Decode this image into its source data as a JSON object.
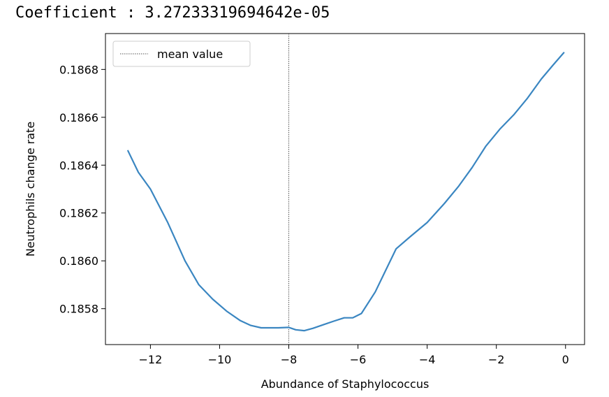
{
  "header": {
    "coefficient_text": "Coefficient : 3.27233319694642e-05"
  },
  "chart_data": {
    "type": "line",
    "xlabel": "Abundance of Staphylococcus",
    "ylabel": "Neutrophils change rate",
    "xlim": [
      -13.3,
      0.55
    ],
    "ylim": [
      0.18565,
      0.18695
    ],
    "xticks": [
      -12,
      -10,
      -8,
      -6,
      -4,
      -2,
      0
    ],
    "xtick_labels": [
      "−12",
      "−10",
      "−8",
      "−6",
      "−4",
      "−2",
      "0"
    ],
    "yticks": [
      0.1858,
      0.186,
      0.1862,
      0.1864,
      0.1866,
      0.1868
    ],
    "ytick_labels": [
      "0.1858",
      "0.1860",
      "0.1862",
      "0.1864",
      "0.1866",
      "0.1868"
    ],
    "grid": false,
    "legend": {
      "placement": "top-left",
      "entries": [
        {
          "label": "mean value",
          "style": "dotted",
          "color": "#555555"
        }
      ]
    },
    "reference_line": {
      "orientation": "vertical",
      "x": -8.0,
      "style": "dotted",
      "color": "#555555"
    },
    "series": [
      {
        "color": "#3a86c1",
        "x": [
          -12.65,
          -12.35,
          -12.0,
          -11.5,
          -11.0,
          -10.6,
          -10.2,
          -9.8,
          -9.4,
          -9.1,
          -8.8,
          -8.6,
          -8.3,
          -8.0,
          -7.8,
          -7.55,
          -7.3,
          -7.0,
          -6.7,
          -6.4,
          -6.15,
          -5.9,
          -5.5,
          -5.2,
          -4.9,
          -4.5,
          -4.0,
          -3.5,
          -3.1,
          -2.7,
          -2.3,
          -1.9,
          -1.5,
          -1.1,
          -0.7,
          -0.35,
          -0.05
        ],
        "y": [
          0.18646,
          0.18637,
          0.1863,
          0.18616,
          0.186,
          0.1859,
          0.18584,
          0.18579,
          0.18575,
          0.18573,
          0.18572,
          0.18572,
          0.18572,
          0.185722,
          0.185712,
          0.185708,
          0.185718,
          0.185733,
          0.185748,
          0.185762,
          0.185762,
          0.18578,
          0.18587,
          0.18596,
          0.18605,
          0.1861,
          0.18616,
          0.18624,
          0.18631,
          0.18639,
          0.18648,
          0.18655,
          0.18661,
          0.18668,
          0.18676,
          0.18682,
          0.18687
        ]
      }
    ]
  }
}
